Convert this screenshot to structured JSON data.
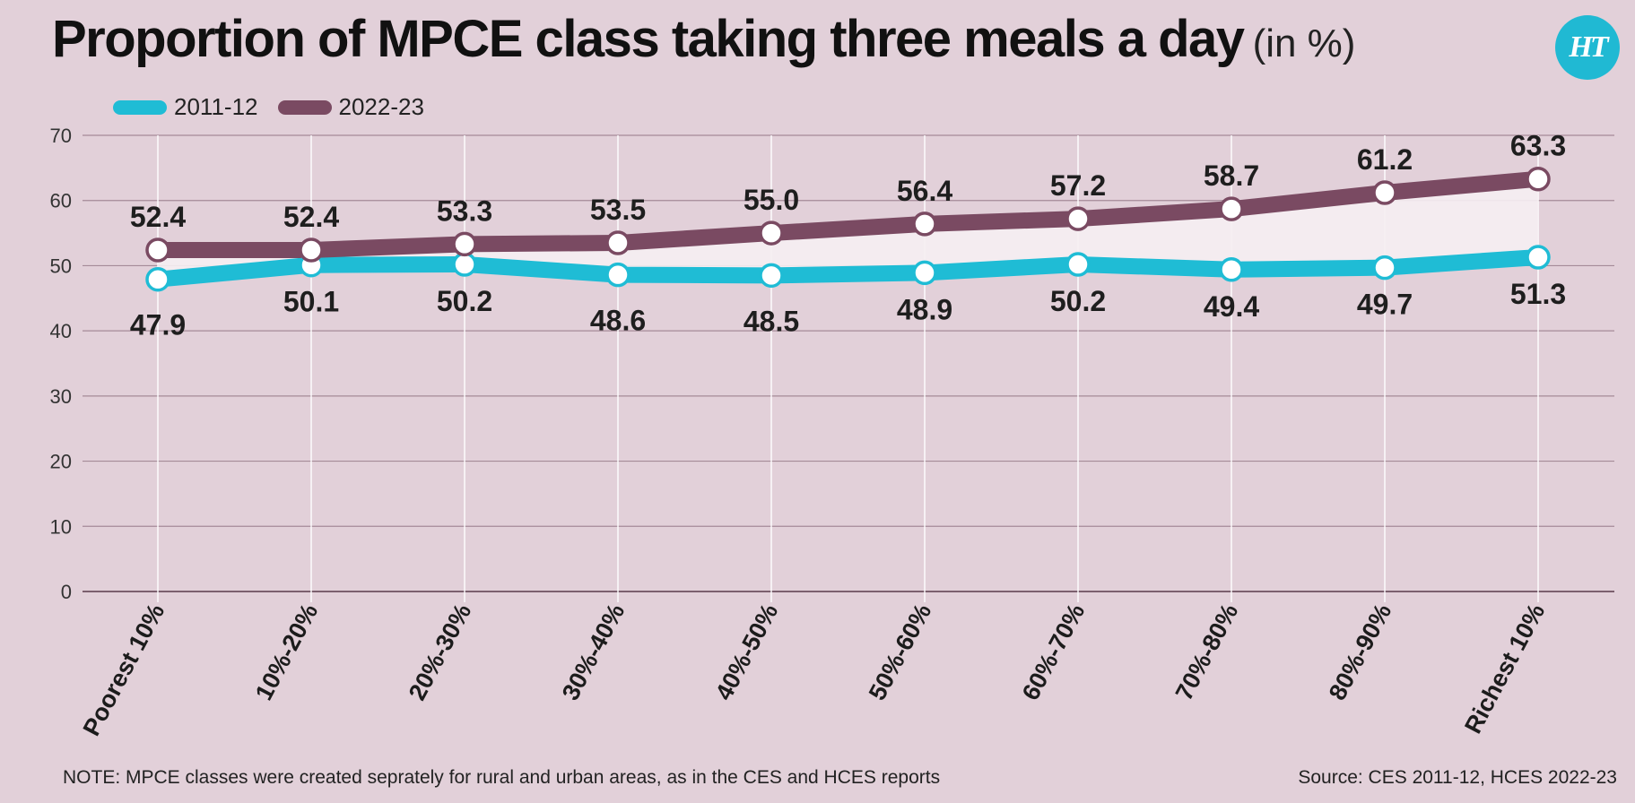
{
  "title": "Proportion of MPCE class taking three meals a day",
  "title_unit": "(in %)",
  "logo_text": "HT",
  "note": "NOTE: MPCE classes were created seprately for rural and urban areas, as in the CES and HCES reports",
  "source": "Source: CES 2011-12, HCES 2022-23",
  "chart_data": {
    "type": "line",
    "categories": [
      "Poorest 10%",
      "10%-20%",
      "20%-30%",
      "30%-40%",
      "40%-50%",
      "50%-60%",
      "60%-70%",
      "70%-80%",
      "80%-90%",
      "Richest 10%"
    ],
    "series": [
      {
        "name": "2011-12",
        "color": "#1fbcd5",
        "values": [
          47.9,
          50.1,
          50.2,
          48.6,
          48.5,
          48.9,
          50.2,
          49.4,
          49.7,
          51.3
        ]
      },
      {
        "name": "2022-23",
        "color": "#7a4a62",
        "values": [
          52.4,
          52.4,
          53.3,
          53.5,
          55.0,
          56.4,
          57.2,
          58.7,
          61.2,
          63.3
        ]
      }
    ],
    "ylim": [
      0,
      70
    ],
    "yticks": [
      0,
      10,
      20,
      30,
      40,
      50,
      60,
      70
    ],
    "grid": true,
    "legend": "top-left",
    "band_fill": "#f6eef2",
    "grid_color": "#a58a98"
  }
}
